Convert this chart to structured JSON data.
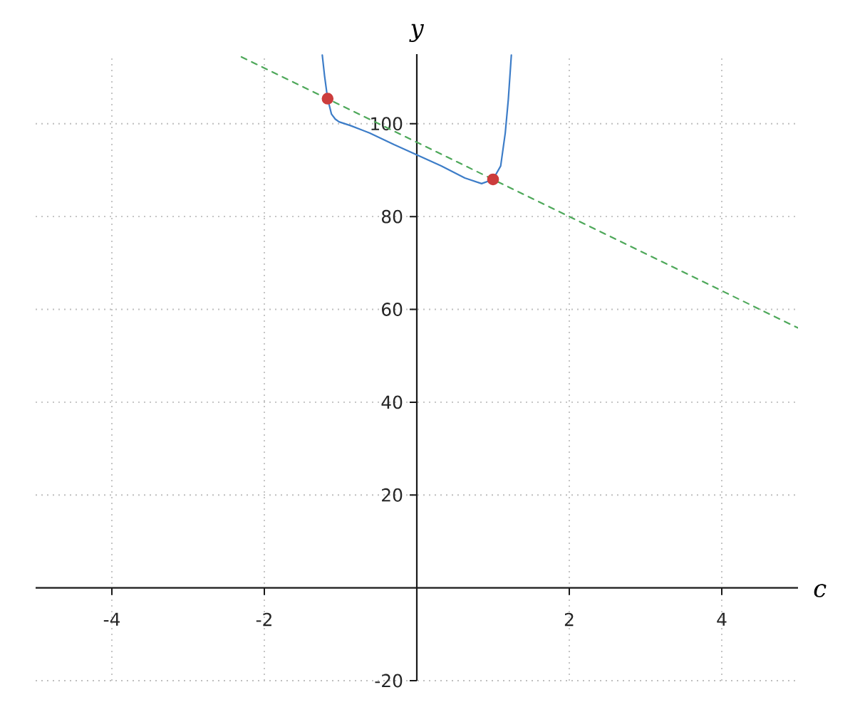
{
  "chart_data": {
    "type": "line",
    "xlabel": "c",
    "ylabel": "y",
    "xlim": [
      -5,
      5
    ],
    "ylim": [
      -20,
      115
    ],
    "xticks": [
      -4,
      -2,
      2,
      4
    ],
    "yticks": [
      -20,
      20,
      40,
      60,
      80,
      100
    ],
    "grid": true,
    "series": [
      {
        "color": "#3d7dc8",
        "marker": "none",
        "line_style": "solid",
        "x": [
          -1.24,
          -1.21,
          -1.17,
          -1.12,
          -1.07,
          -1.02,
          -0.87,
          -0.62,
          -0.3,
          0,
          0.32,
          0.63,
          0.85,
          1.0,
          1.1,
          1.16,
          1.2,
          1.24
        ],
        "values": [
          114.8,
          110.3,
          105.4,
          102.1,
          101.0,
          100.4,
          99.6,
          98.0,
          95.5,
          93.3,
          90.9,
          88.3,
          87.1,
          88.0,
          90.9,
          98.0,
          105.2,
          114.8
        ]
      },
      {
        "color": "#4ea85a",
        "marker": "none",
        "line_style": "dashed",
        "x": [
          -2.3,
          5
        ],
        "values": [
          114.4,
          56
        ]
      },
      {
        "type": "scatter",
        "color": "#cc3d3d",
        "marker": "circle",
        "x": [
          -1.17,
          1.0
        ],
        "values": [
          105.4,
          88.0
        ]
      }
    ]
  }
}
